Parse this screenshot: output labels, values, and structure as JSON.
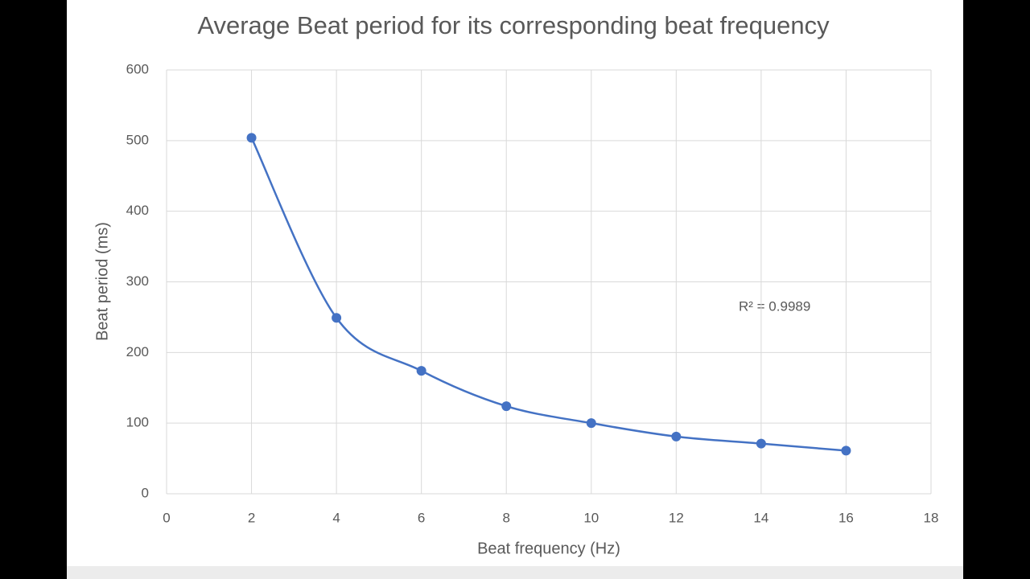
{
  "chart_data": {
    "type": "scatter",
    "title": "Average Beat period for its corresponding beat frequency",
    "x_label": "Beat frequency (Hz)",
    "y_label": "Beat period (ms)",
    "annotation": "R² = 0.9989",
    "x": [
      2,
      4,
      6,
      8,
      10,
      12,
      14,
      16
    ],
    "values": [
      504,
      249,
      174,
      124,
      100,
      81,
      71,
      61
    ],
    "color": "#4472c4",
    "trendline": true,
    "xlim": [
      0,
      18
    ],
    "xticks": [
      0,
      2,
      4,
      6,
      8,
      10,
      12,
      14,
      16,
      18
    ],
    "ylim": [
      0,
      600
    ],
    "yticks": [
      0,
      100,
      200,
      300,
      400,
      500,
      600
    ],
    "grid": true
  }
}
